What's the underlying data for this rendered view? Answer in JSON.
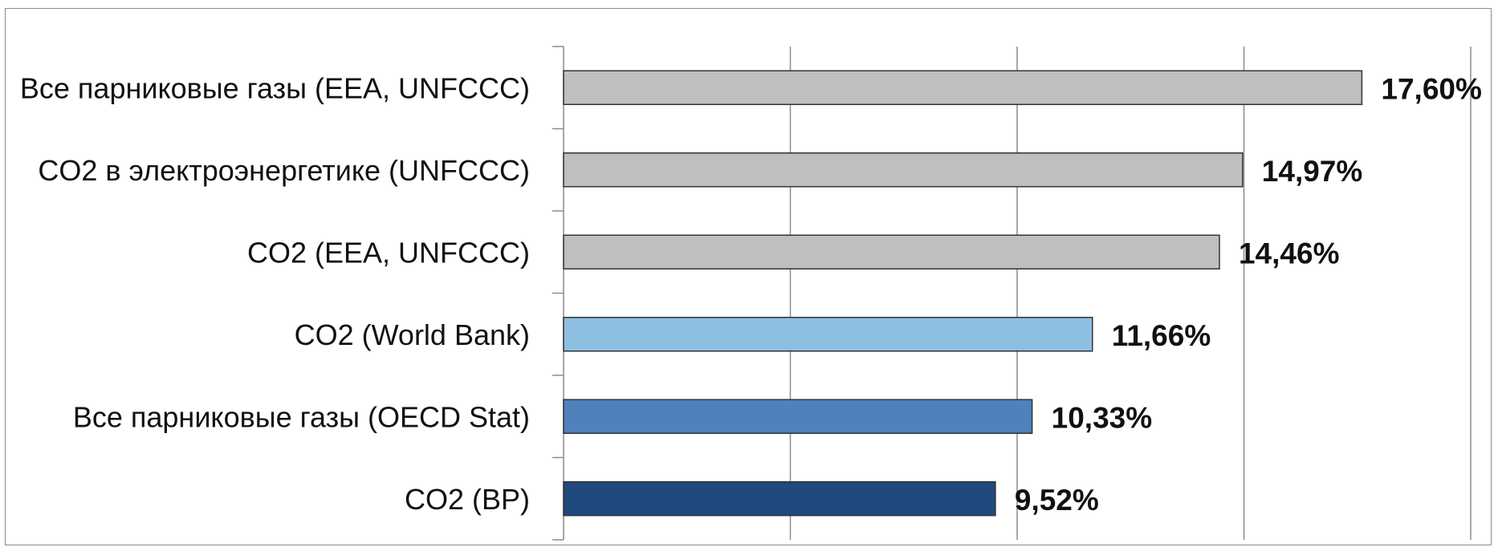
{
  "chart_data": {
    "type": "bar",
    "orientation": "horizontal",
    "categories": [
      "Все парниковые газы (EEA, UNFCCC)",
      "CO2 в электроэнергетике (UNFCCC)",
      "CO2 (EEA, UNFCCC)",
      "CO2 (World Bank)",
      "Все парниковые газы (OECD Stat)",
      "CO2 (BP)"
    ],
    "values": [
      17.6,
      14.97,
      14.46,
      11.66,
      10.33,
      9.52
    ],
    "value_labels": [
      "17,60%",
      "14,97%",
      "14,46%",
      "11,66%",
      "10,33%",
      "9,52%"
    ],
    "bar_colors": [
      "#bfbfbf",
      "#bfbfbf",
      "#bfbfbf",
      "#8ebfe3",
      "#4f81bd",
      "#1f497d"
    ],
    "xlim": [
      0,
      20
    ],
    "grid": true,
    "gridline_color": "#8c8c8c",
    "title": "",
    "xlabel": "",
    "ylabel": ""
  }
}
